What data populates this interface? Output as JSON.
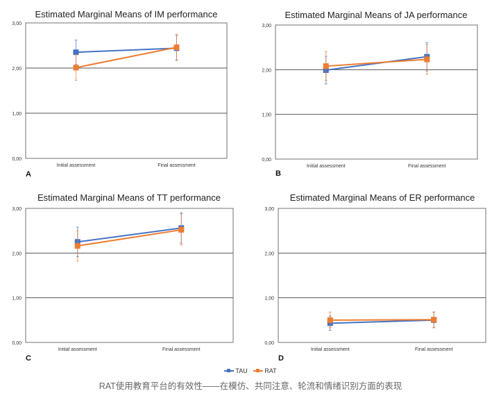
{
  "colors": {
    "TAU": "#4472c4",
    "RAT": "#ed7d31",
    "grid": "#555555",
    "frame": "#888888"
  },
  "legend": [
    {
      "name": "TAU",
      "color": "#4472c4"
    },
    {
      "name": "RAT",
      "color": "#ed7d31"
    }
  ],
  "caption": "RAT使用教育平台的有效性——在模仿、共同注意、轮流和情绪识别方面的表现",
  "chart_data": [
    {
      "type": "line",
      "panel": "A",
      "title": "Estimated Marginal Means of IM performance",
      "categories": [
        "Initial assessment",
        "Final assessment"
      ],
      "ylim": [
        0,
        3
      ],
      "yticks": [
        "0,00",
        "1,00",
        "2,00",
        "3,00"
      ],
      "series": [
        {
          "name": "TAU",
          "values": [
            2.35,
            2.44
          ],
          "err_low": [
            2.08,
            2.17
          ],
          "err_high": [
            2.62,
            2.72
          ]
        },
        {
          "name": "RAT",
          "values": [
            2.01,
            2.46
          ],
          "err_low": [
            1.73,
            2.18
          ],
          "err_high": [
            2.3,
            2.75
          ]
        }
      ]
    },
    {
      "type": "line",
      "panel": "B",
      "title": "Estimated Marginal Means of JA performance",
      "categories": [
        "Initial assessment",
        "Final assessment"
      ],
      "ylim": [
        0,
        3
      ],
      "yticks": [
        "0,00",
        "1,00",
        "2,00",
        "3,00"
      ],
      "series": [
        {
          "name": "TAU",
          "values": [
            1.99,
            2.29
          ],
          "err_low": [
            1.68,
            1.97
          ],
          "err_high": [
            2.3,
            2.61
          ]
        },
        {
          "name": "RAT",
          "values": [
            2.08,
            2.23
          ],
          "err_low": [
            1.76,
            1.9
          ],
          "err_high": [
            2.41,
            2.56
          ]
        }
      ]
    },
    {
      "type": "line",
      "panel": "C",
      "title": "Estimated Marginal Means of TT performance",
      "categories": [
        "Initial assessment",
        "Final assessment"
      ],
      "ylim": [
        0,
        3
      ],
      "yticks": [
        "0,00",
        "1,00",
        "2,00",
        "3,00"
      ],
      "series": [
        {
          "name": "TAU",
          "values": [
            2.25,
            2.56
          ],
          "err_low": [
            1.92,
            2.22
          ],
          "err_high": [
            2.58,
            2.9
          ]
        },
        {
          "name": "RAT",
          "values": [
            2.16,
            2.52
          ],
          "err_low": [
            1.82,
            2.18
          ],
          "err_high": [
            2.5,
            2.88
          ]
        }
      ]
    },
    {
      "type": "line",
      "panel": "D",
      "title": "Estimated Marginal Means of ER performance",
      "categories": [
        "Initial assessment",
        "Final assessment"
      ],
      "ylim": [
        0,
        3
      ],
      "yticks": [
        "0,00",
        "1,00",
        "2,00",
        "3,00"
      ],
      "series": [
        {
          "name": "TAU",
          "values": [
            0.43,
            0.5
          ],
          "err_low": [
            0.27,
            0.33
          ],
          "err_high": [
            0.59,
            0.68
          ]
        },
        {
          "name": "RAT",
          "values": [
            0.5,
            0.51
          ],
          "err_low": [
            0.33,
            0.33
          ],
          "err_high": [
            0.68,
            0.68
          ]
        }
      ]
    }
  ]
}
